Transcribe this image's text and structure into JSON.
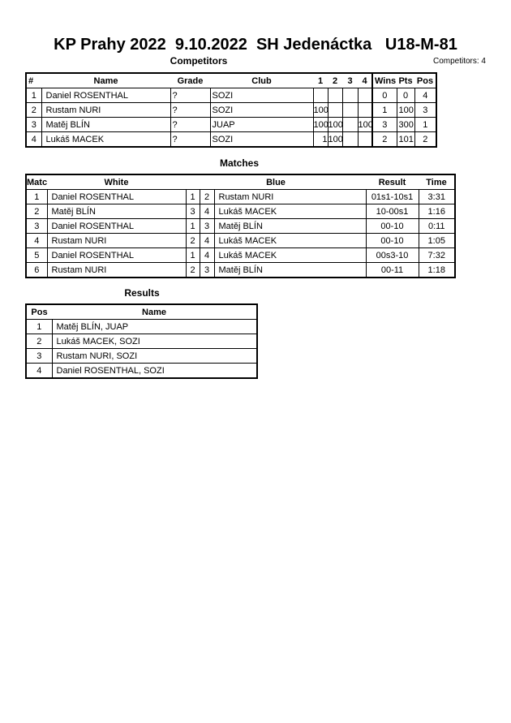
{
  "title": "KP Prahy 2022  9.10.2022  SH Jedenáctka   U18-M-81",
  "competitors": {
    "heading": "Competitors",
    "count_label": "Competitors: 4",
    "columns": [
      "#",
      "Name",
      "Grade",
      "Club",
      "1",
      "2",
      "3",
      "4",
      "Wins",
      "Pts",
      "Pos"
    ],
    "rows": [
      [
        "1",
        "Daniel ROSENTHAL",
        "?",
        "SOZI",
        "",
        "",
        "",
        "",
        "0",
        "0",
        "4"
      ],
      [
        "2",
        "Rustam NURI",
        "?",
        "SOZI",
        "100",
        "",
        "",
        "",
        "1",
        "100",
        "3"
      ],
      [
        "3",
        "Matěj BLÍN",
        "?",
        "JUAP",
        "100",
        "100",
        "",
        "100",
        "3",
        "300",
        "1"
      ],
      [
        "4",
        "Lukáš MACEK",
        "?",
        "SOZI",
        "1",
        "100",
        "",
        "",
        "2",
        "101",
        "2"
      ]
    ]
  },
  "matches": {
    "heading": "Matches",
    "columns": [
      "Match",
      "White",
      "Blue",
      "Result",
      "Time"
    ],
    "rows": [
      [
        "1",
        "Daniel ROSENTHAL",
        "1",
        "2",
        "Rustam NURI",
        "01s1-10s1",
        "3:31"
      ],
      [
        "2",
        "Matěj BLÍN",
        "3",
        "4",
        "Lukáš MACEK",
        "10-00s1",
        "1:16"
      ],
      [
        "3",
        "Daniel ROSENTHAL",
        "1",
        "3",
        "Matěj BLÍN",
        "00-10",
        "0:11"
      ],
      [
        "4",
        "Rustam NURI",
        "2",
        "4",
        "Lukáš MACEK",
        "00-10",
        "1:05"
      ],
      [
        "5",
        "Daniel ROSENTHAL",
        "1",
        "4",
        "Lukáš MACEK",
        "00s3-10",
        "7:32"
      ],
      [
        "6",
        "Rustam NURI",
        "2",
        "3",
        "Matěj BLÍN",
        "00-11",
        "1:18"
      ]
    ]
  },
  "results": {
    "heading": "Results",
    "columns": [
      "Pos",
      "Name"
    ],
    "rows": [
      [
        "1",
        "Matěj BLÍN, JUAP"
      ],
      [
        "2",
        "Lukáš MACEK, SOZI"
      ],
      [
        "3",
        "Rustam NURI, SOZI"
      ],
      [
        "4",
        "Daniel ROSENTHAL, SOZI"
      ]
    ]
  }
}
